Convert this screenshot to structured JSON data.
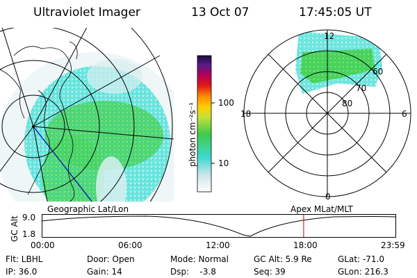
{
  "header": {
    "title": "Ultraviolet Imager",
    "date": "13 Oct 07",
    "time": "17:45:05 UT"
  },
  "colorbar": {
    "label": "photon cm⁻²s⁻¹",
    "ticks": [
      "100",
      "10"
    ]
  },
  "polar_plot": {
    "mlt_labels": {
      "top": "12",
      "right": "6",
      "bottom": "0",
      "left": "18"
    },
    "lat_labels": [
      "60",
      "70",
      "80"
    ]
  },
  "timeline": {
    "left_label": "Geographic Lat/Lon",
    "right_label": "Apex MLat/MLT",
    "y_axis_label": "GC Alt",
    "y_ticks": [
      "9.0",
      "1.8"
    ],
    "x_ticks": [
      "00:00",
      "06:00",
      "12:00",
      "18:00",
      "23:59"
    ],
    "current_time_fraction": 0.74
  },
  "footer": {
    "row1": {
      "filter": "Flt: LBHL",
      "door": "Door: Open",
      "mode": "Mode: Normal",
      "gc_alt": "GC Alt: 5.9 Re",
      "glat": "GLat: -71.0"
    },
    "row2": {
      "ip": "IP: 36.0",
      "gain": "Gain: 14",
      "dsp": "Dsp:    -3.8",
      "seq": "Seq: 39",
      "glon": "GLon: 216.3"
    }
  },
  "colors": {
    "cyan": "#3fe0d8",
    "green": "#3ccc4a",
    "accent_line": "#cc0000"
  }
}
